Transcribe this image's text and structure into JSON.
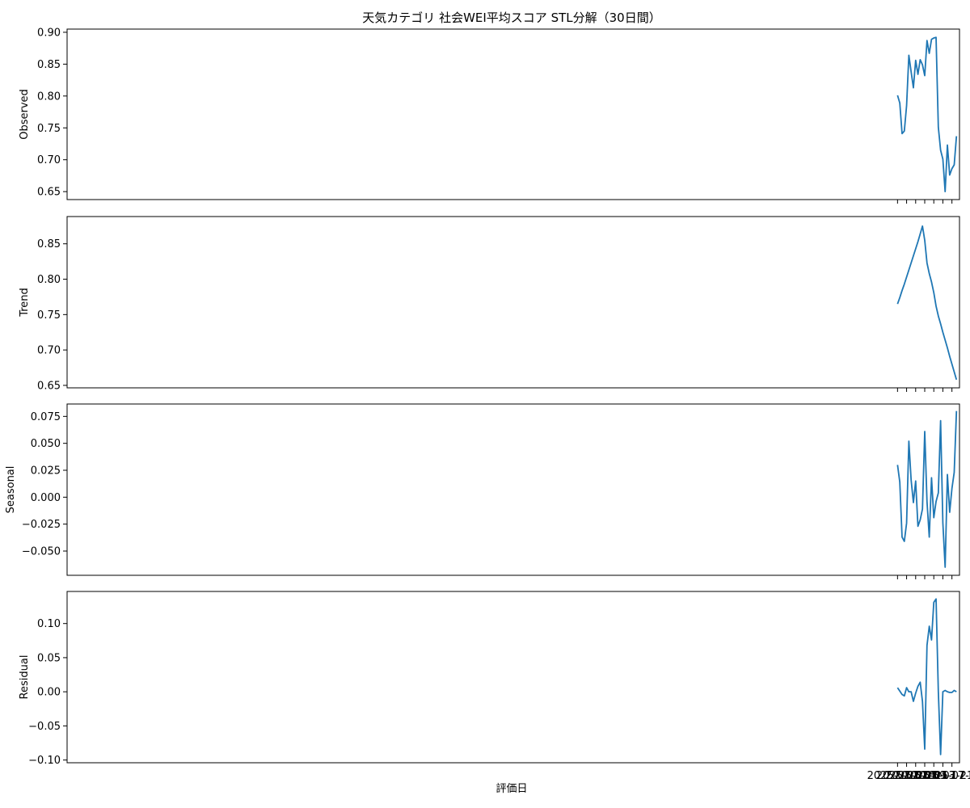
{
  "chart_data": {
    "type": "line",
    "title": "天気カテゴリ 社会WEI平均スコア STL分解（30日間）",
    "xlabel": "評価日",
    "x_tick_labels": [
      "2025-07-01",
      "2025-07-05",
      "2025-07-09",
      "2025-07-13",
      "2025-07-17",
      "2025-07-21",
      "2025-07-25"
    ],
    "x_tick_dates": [
      "2025-07-01",
      "2025-07-05",
      "2025-07-09",
      "2025-07-13",
      "2025-07-17",
      "2025-07-21",
      "2025-07-25"
    ],
    "x": [
      "2025-07-01",
      "2025-07-02",
      "2025-07-03",
      "2025-07-04",
      "2025-07-05",
      "2025-07-06",
      "2025-07-07",
      "2025-07-08",
      "2025-07-09",
      "2025-07-10",
      "2025-07-11",
      "2025-07-12",
      "2025-07-13",
      "2025-07-14",
      "2025-07-15",
      "2025-07-16",
      "2025-07-17",
      "2025-07-18",
      "2025-07-19",
      "2025-07-20",
      "2025-07-21",
      "2025-07-22",
      "2025-07-23",
      "2025-07-24",
      "2025-07-25",
      "2025-07-26",
      "2025-07-27"
    ],
    "xlim": [
      "2024-06-29T16:00",
      "2025-07-28T08:00"
    ],
    "panels": [
      {
        "ylabel": "Observed",
        "ylim": [
          0.6375,
          0.905
        ],
        "yticks": [
          0.65,
          0.7,
          0.75,
          0.8,
          0.85,
          0.9
        ],
        "ytick_labels": [
          "0.65",
          "0.70",
          "0.75",
          "0.80",
          "0.85",
          "0.90"
        ],
        "values": [
          0.801,
          0.789,
          0.741,
          0.745,
          0.785,
          0.864,
          0.838,
          0.813,
          0.856,
          0.834,
          0.857,
          0.849,
          0.832,
          0.887,
          0.867,
          0.889,
          0.891,
          0.892,
          0.751,
          0.715,
          0.701,
          0.65,
          0.723,
          0.676,
          0.686,
          0.692,
          0.737
        ]
      },
      {
        "ylabel": "Trend",
        "ylim": [
          0.6465,
          0.8885
        ],
        "yticks": [
          0.65,
          0.7,
          0.75,
          0.8,
          0.85
        ],
        "ytick_labels": [
          "0.65",
          "0.70",
          "0.75",
          "0.80",
          "0.85"
        ],
        "values": [
          0.765,
          0.774,
          0.784,
          0.793,
          0.803,
          0.813,
          0.823,
          0.833,
          0.843,
          0.853,
          0.864,
          0.875,
          0.855,
          0.823,
          0.808,
          0.796,
          0.781,
          0.762,
          0.748,
          0.737,
          0.725,
          0.714,
          0.703,
          0.691,
          0.68,
          0.669,
          0.658
        ]
      },
      {
        "ylabel": "Seasonal",
        "ylim": [
          -0.0725,
          0.0865
        ],
        "yticks": [
          -0.05,
          -0.025,
          0.0,
          0.025,
          0.05,
          0.075
        ],
        "ytick_labels": [
          "−0.050",
          "−0.025",
          "0.000",
          "0.025",
          "0.050",
          "0.075"
        ],
        "values": [
          0.03,
          0.014,
          -0.037,
          -0.041,
          -0.024,
          0.052,
          0.016,
          -0.005,
          0.015,
          -0.027,
          -0.021,
          -0.011,
          0.061,
          -0.004,
          -0.037,
          0.018,
          -0.019,
          -0.004,
          0.004,
          0.071,
          -0.024,
          -0.065,
          0.021,
          -0.014,
          0.008,
          0.023,
          0.08
        ]
      },
      {
        "ylabel": "Residual",
        "ylim": [
          -0.104,
          0.147
        ],
        "yticks": [
          -0.1,
          -0.05,
          0.0,
          0.05,
          0.1
        ],
        "ytick_labels": [
          "−0.10",
          "−0.05",
          "0.00",
          "0.05",
          "0.10"
        ],
        "values": [
          0.006,
          0.001,
          -0.004,
          -0.006,
          0.006,
          0.0,
          0.0,
          -0.014,
          -0.002,
          0.008,
          0.014,
          -0.014,
          -0.084,
          0.068,
          0.096,
          0.076,
          0.131,
          0.136,
          0.0,
          -0.092,
          0.0,
          0.002,
          0.0,
          -0.001,
          -0.001,
          0.002,
          0.0
        ]
      }
    ],
    "color": "#1f77b4",
    "grid": false,
    "shared_x": true
  }
}
